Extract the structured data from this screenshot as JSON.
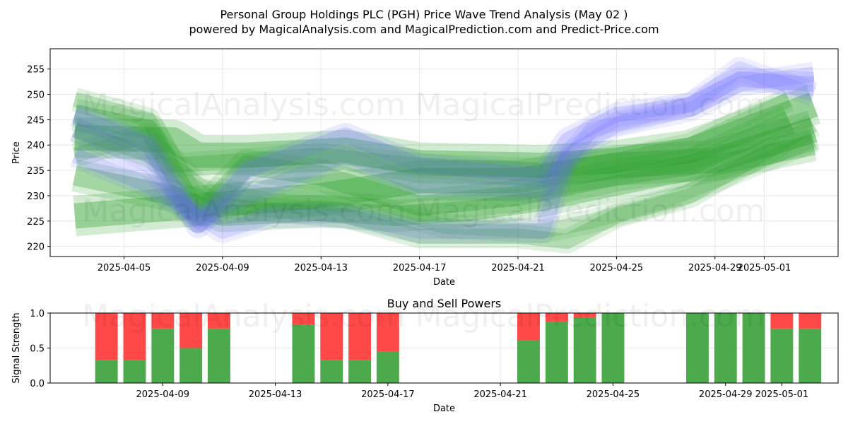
{
  "title": {
    "line1": "Personal Group Holdings PLC (PGH) Price Wave Trend Analysis (May 02 )",
    "line2": "powered by MagicalAnalysis.com and MagicalPrediction.com and Predict-Price.com"
  },
  "watermarks": [
    "MagicalAnalysis.com",
    "MagicalPrediction.com"
  ],
  "colors": {
    "green_band": "#2ca02c",
    "blue_band": "#6666ff",
    "buy": "#4caa4c",
    "sell": "#ff4848",
    "grid": "#e6e6e6"
  },
  "chart_data": [
    {
      "type": "area",
      "title": "",
      "xlabel": "Date",
      "ylabel": "Price",
      "x_domain": [
        "2025-04-02",
        "2025-05-04"
      ],
      "ylim": [
        218,
        259
      ],
      "x_ticks": [
        "2025-04-05",
        "2025-04-09",
        "2025-04-13",
        "2025-04-17",
        "2025-04-21",
        "2025-04-25",
        "2025-04-29",
        "2025-05-01"
      ],
      "y_ticks": [
        220,
        225,
        230,
        235,
        240,
        245,
        250,
        255
      ],
      "grid": true,
      "series": [
        {
          "color": "green",
          "band_width": 5,
          "opacity": 0.35,
          "points": [
            [
              "2025-04-03",
              241.5
            ],
            [
              "2025-04-07",
              241
            ],
            [
              "2025-04-08",
              238
            ],
            [
              "2025-04-10",
              238
            ],
            [
              "2025-04-14",
              239
            ],
            [
              "2025-04-17",
              236.5
            ],
            [
              "2025-04-22",
              236
            ],
            [
              "2025-04-25",
              237
            ],
            [
              "2025-04-28",
              239
            ],
            [
              "2025-05-03",
              248
            ]
          ]
        },
        {
          "color": "green",
          "band_width": 5,
          "opacity": 0.35,
          "points": [
            [
              "2025-04-03",
              226
            ],
            [
              "2025-04-08",
              228
            ],
            [
              "2025-04-13",
              230
            ],
            [
              "2025-04-17",
              233
            ],
            [
              "2025-04-21",
              233
            ],
            [
              "2025-04-25",
              236
            ],
            [
              "2025-04-29",
              237
            ],
            [
              "2025-05-03",
              243
            ]
          ]
        },
        {
          "color": "green",
          "band_width": 4,
          "opacity": 0.3,
          "points": [
            [
              "2025-04-03",
              234
            ],
            [
              "2025-04-07",
              230
            ],
            [
              "2025-04-09",
              226
            ],
            [
              "2025-04-13",
              227
            ],
            [
              "2025-04-16",
              226
            ],
            [
              "2025-04-19",
              227
            ],
            [
              "2025-04-22",
              229
            ],
            [
              "2025-04-25",
              232
            ],
            [
              "2025-04-28",
              235
            ],
            [
              "2025-05-03",
              240
            ]
          ]
        },
        {
          "color": "green",
          "band_width": 4,
          "opacity": 0.3,
          "points": [
            [
              "2025-04-03",
              246
            ],
            [
              "2025-04-06",
              243
            ],
            [
              "2025-04-08",
              226
            ],
            [
              "2025-04-10",
              236
            ],
            [
              "2025-04-13",
              234
            ],
            [
              "2025-04-17",
              228
            ],
            [
              "2025-04-21",
              230
            ],
            [
              "2025-04-25",
              234
            ],
            [
              "2025-04-28",
              236
            ],
            [
              "2025-05-02",
              245
            ]
          ]
        },
        {
          "color": "green",
          "band_width": 3,
          "opacity": 0.25,
          "points": [
            [
              "2025-04-03",
              249
            ],
            [
              "2025-04-06",
              245
            ],
            [
              "2025-04-07",
              236
            ],
            [
              "2025-04-10",
              237
            ],
            [
              "2025-04-13",
              238
            ],
            [
              "2025-04-17",
              236
            ],
            [
              "2025-04-22",
              235
            ],
            [
              "2025-04-25",
              237
            ],
            [
              "2025-04-28",
              240
            ],
            [
              "2025-05-02",
              249
            ]
          ]
        },
        {
          "color": "green",
          "band_width": 3,
          "opacity": 0.25,
          "points": [
            [
              "2025-04-03",
              243
            ],
            [
              "2025-04-06",
              238
            ],
            [
              "2025-04-09",
              228
            ],
            [
              "2025-04-14",
              226
            ],
            [
              "2025-04-17",
              222
            ],
            [
              "2025-04-21",
              222
            ],
            [
              "2025-04-23",
              221
            ],
            [
              "2025-04-25",
              226
            ],
            [
              "2025-04-28",
              230
            ],
            [
              "2025-05-03",
              244
            ]
          ]
        },
        {
          "color": "green",
          "band_width": 3,
          "opacity": 0.2,
          "points": [
            [
              "2025-04-03",
              238
            ],
            [
              "2025-04-06",
              242
            ],
            [
              "2025-04-08",
              232
            ],
            [
              "2025-04-11",
              229
            ],
            [
              "2025-04-15",
              228
            ],
            [
              "2025-04-18",
              224
            ],
            [
              "2025-04-22",
              223
            ],
            [
              "2025-04-24",
              225
            ],
            [
              "2025-04-27",
              229
            ],
            [
              "2025-05-03",
              241
            ]
          ]
        },
        {
          "color": "blue",
          "band_width": 3,
          "opacity": 0.22,
          "points": [
            [
              "2025-04-03",
              246
            ],
            [
              "2025-04-06",
              240
            ],
            [
              "2025-04-08",
              224
            ],
            [
              "2025-04-10",
              235
            ],
            [
              "2025-04-14",
              242
            ],
            [
              "2025-04-17",
              236
            ],
            [
              "2025-04-22",
              234
            ],
            [
              "2025-04-23",
              241
            ],
            [
              "2025-04-25",
              246
            ],
            [
              "2025-04-28",
              248
            ],
            [
              "2025-04-30",
              253
            ],
            [
              "2025-05-03",
              252
            ]
          ]
        },
        {
          "color": "blue",
          "band_width": 3,
          "opacity": 0.18,
          "points": [
            [
              "2025-04-03",
              238
            ],
            [
              "2025-04-06",
              232
            ],
            [
              "2025-04-09",
              223
            ],
            [
              "2025-04-11",
              226
            ],
            [
              "2025-04-14",
              226
            ],
            [
              "2025-04-17",
              223
            ],
            [
              "2025-04-22",
              223
            ],
            [
              "2025-04-23",
              238
            ],
            [
              "2025-04-25",
              244
            ],
            [
              "2025-04-28",
              247
            ],
            [
              "2025-04-30",
              252
            ],
            [
              "2025-05-03",
              254
            ]
          ]
        },
        {
          "color": "blue",
          "band_width": 3,
          "opacity": 0.16,
          "points": [
            [
              "2025-04-03",
              243
            ],
            [
              "2025-04-06",
              236
            ],
            [
              "2025-04-08",
              225
            ],
            [
              "2025-04-10",
              230
            ],
            [
              "2025-04-14",
              238
            ],
            [
              "2025-04-17",
              232
            ],
            [
              "2025-04-22",
              231
            ],
            [
              "2025-04-24",
              243
            ],
            [
              "2025-04-28",
              248
            ],
            [
              "2025-04-30",
              255
            ],
            [
              "2025-05-03",
              250
            ]
          ]
        }
      ]
    },
    {
      "type": "bar",
      "title": "Buy and Sell Powers",
      "xlabel": "Date",
      "ylabel": "Signal Strength",
      "x_domain": [
        "2025-04-05",
        "2025-05-03"
      ],
      "ylim": [
        0,
        1
      ],
      "x_ticks": [
        "2025-04-09",
        "2025-04-13",
        "2025-04-17",
        "2025-04-21",
        "2025-04-25",
        "2025-04-29",
        "2025-05-01"
      ],
      "y_ticks": [
        "0.0",
        "0.5",
        "1.0"
      ],
      "grid": true,
      "series": [
        {
          "name": "buy",
          "values": [
            0.33,
            0.33,
            0.78,
            0.5,
            0.78,
            0.83,
            0.33,
            0.33,
            0.45,
            0.61,
            0.88,
            0.94,
            1.0,
            1.0,
            1.0,
            1.0,
            0.78,
            0.78
          ]
        },
        {
          "name": "sell",
          "values": [
            0.67,
            0.67,
            0.22,
            0.5,
            0.22,
            0.17,
            0.67,
            0.67,
            0.55,
            0.39,
            0.12,
            0.06,
            0.0,
            0.0,
            0.0,
            0.0,
            0.22,
            0.22
          ]
        }
      ],
      "categories": [
        "2025-04-07",
        "2025-04-08",
        "2025-04-09",
        "2025-04-10",
        "2025-04-11",
        "2025-04-14",
        "2025-04-15",
        "2025-04-16",
        "2025-04-17",
        "2025-04-22",
        "2025-04-23",
        "2025-04-24",
        "2025-04-25",
        "2025-04-28",
        "2025-04-29",
        "2025-04-30",
        "2025-05-01",
        "2025-05-02"
      ]
    }
  ]
}
